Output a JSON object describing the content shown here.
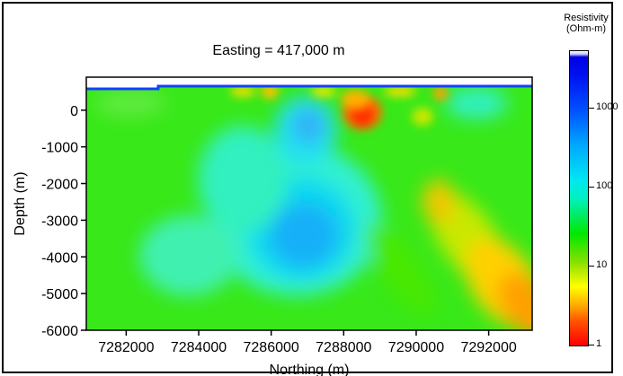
{
  "chart_data": {
    "type": "heatmap",
    "title": "Easting = 417,000 m",
    "xlabel": "Northing (m)",
    "ylabel": "Depth (m)",
    "xlim": [
      7280900,
      7293200
    ],
    "ylim": [
      -6000,
      900
    ],
    "x_ticks": [
      7282000,
      7284000,
      7286000,
      7288000,
      7290000,
      7292000
    ],
    "x_tick_labels": [
      "7282000",
      "7284000",
      "7286000",
      "7288000",
      "7290000",
      "7292000"
    ],
    "y_ticks": [
      0,
      -1000,
      -2000,
      -3000,
      -4000,
      -5000,
      -6000
    ],
    "y_tick_labels": [
      "0",
      "-1000",
      "-2000",
      "-3000",
      "-4000",
      "-5000",
      "-6000"
    ],
    "colorbar": {
      "title_lines": [
        "Resistivity",
        "(Ohm-m)"
      ],
      "scale": "log",
      "range": [
        1,
        5000
      ],
      "ticks": [
        1,
        10,
        100,
        1000
      ],
      "tick_labels": [
        "1",
        "10",
        "100",
        "1000"
      ]
    },
    "features": [
      {
        "description": "conductive zone near surface",
        "northing": 7288200,
        "depth": -300,
        "resistivity": 2
      },
      {
        "description": "resistive zone",
        "northing": 7287000,
        "depth": -3200,
        "resistivity": 300
      },
      {
        "description": "resistive zone shallow",
        "northing": 7287000,
        "depth": -600,
        "resistivity": 250
      },
      {
        "description": "conductive band",
        "northing": 7292000,
        "depth": -4500,
        "resistivity": 5
      }
    ]
  }
}
